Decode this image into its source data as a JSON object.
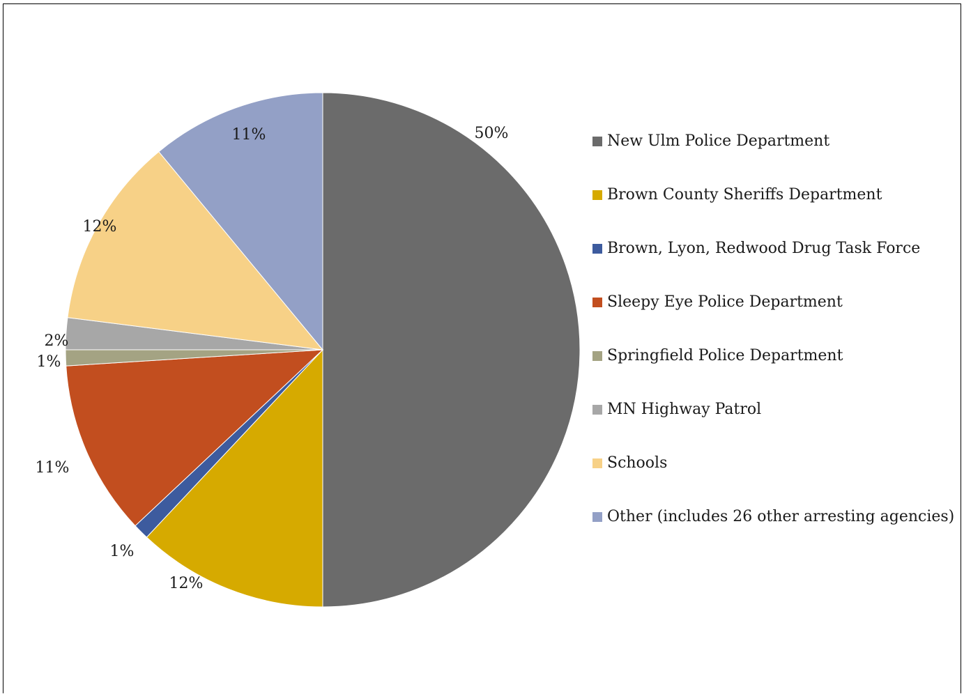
{
  "chart_data": {
    "type": "pie",
    "slices": [
      {
        "label": "New Ulm Police Department",
        "value": 50,
        "display": "50%",
        "color": "#6b6b6b"
      },
      {
        "label": "Brown County Sheriffs Department",
        "value": 12,
        "display": "12%",
        "color": "#d6aa00"
      },
      {
        "label": "Brown, Lyon, Redwood Drug Task Force",
        "value": 1,
        "display": "1%",
        "color": "#3d5b9e"
      },
      {
        "label": "Sleepy Eye Police Department",
        "value": 11,
        "display": "11%",
        "color": "#c24e1f"
      },
      {
        "label": "Springfield Police Department",
        "value": 1,
        "display": "1%",
        "color": "#a4a383"
      },
      {
        "label": "MN Highway Patrol",
        "value": 2,
        "display": "2%",
        "color": "#a7a7a7"
      },
      {
        "label": "Schools",
        "value": 12,
        "display": "12%",
        "color": "#f7d187"
      },
      {
        "label": "Other (includes 26 other arresting agencies)",
        "value": 11,
        "display": "11%",
        "color": "#93a0c6"
      }
    ],
    "legend_position": "right",
    "start_angle": "top, clockwise"
  }
}
